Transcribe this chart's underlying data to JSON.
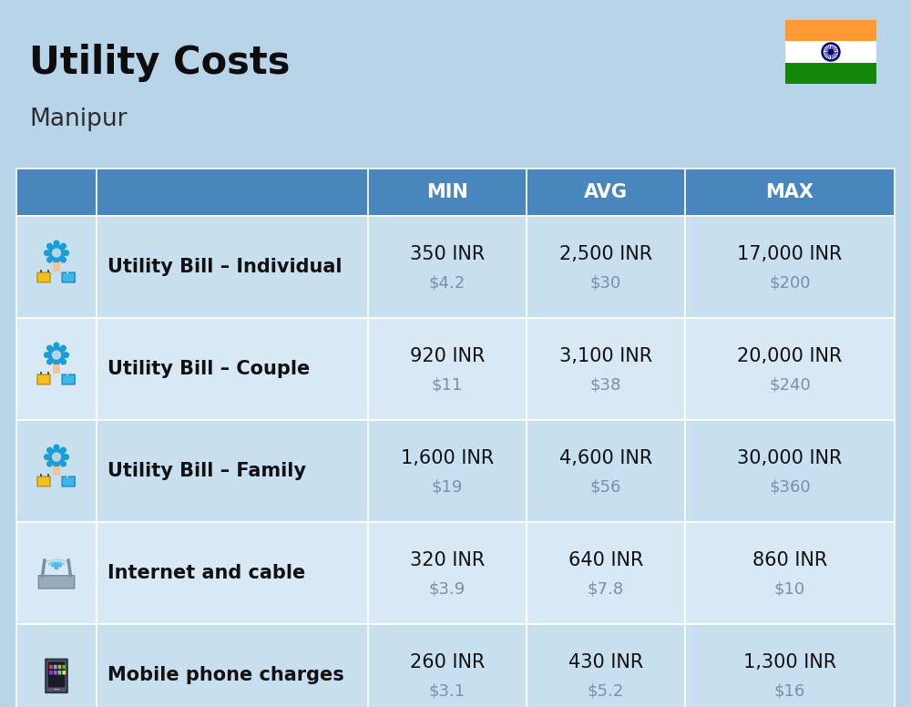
{
  "title": "Utility Costs",
  "subtitle": "Manipur",
  "background_color": "#b8d4e8",
  "header_bg_color": "#4a86be",
  "row_bg_color_odd": "#c8dff0",
  "row_bg_color_even": "#d8e8f4",
  "header_text_color": "#ffffff",
  "header_labels": [
    "MIN",
    "AVG",
    "MAX"
  ],
  "rows": [
    {
      "label": "Utility Bill – Individual",
      "min_inr": "350 INR",
      "min_usd": "$4.2",
      "avg_inr": "2,500 INR",
      "avg_usd": "$30",
      "max_inr": "17,000 INR",
      "max_usd": "$200"
    },
    {
      "label": "Utility Bill – Couple",
      "min_inr": "920 INR",
      "min_usd": "$11",
      "avg_inr": "3,100 INR",
      "avg_usd": "$38",
      "max_inr": "20,000 INR",
      "max_usd": "$240"
    },
    {
      "label": "Utility Bill – Family",
      "min_inr": "1,600 INR",
      "min_usd": "$19",
      "avg_inr": "4,600 INR",
      "avg_usd": "$56",
      "max_inr": "30,000 INR",
      "max_usd": "$360"
    },
    {
      "label": "Internet and cable",
      "min_inr": "320 INR",
      "min_usd": "$3.9",
      "avg_inr": "640 INR",
      "avg_usd": "$7.8",
      "max_inr": "860 INR",
      "max_usd": "$10"
    },
    {
      "label": "Mobile phone charges",
      "min_inr": "260 INR",
      "min_usd": "$3.1",
      "avg_inr": "430 INR",
      "avg_usd": "$5.2",
      "max_inr": "1,300 INR",
      "max_usd": "$16"
    }
  ],
  "title_fontsize": 30,
  "subtitle_fontsize": 19,
  "header_fontsize": 15,
  "cell_inr_fontsize": 15,
  "cell_usd_fontsize": 13,
  "label_fontsize": 15,
  "usd_color": "#7a8fa8",
  "label_color": "#111111",
  "inr_color": "#111111",
  "divider_color": "#ffffff",
  "flag_orange": "#FF9933",
  "flag_white": "#FFFFFF",
  "flag_green": "#138808",
  "flag_navy": "#000080"
}
